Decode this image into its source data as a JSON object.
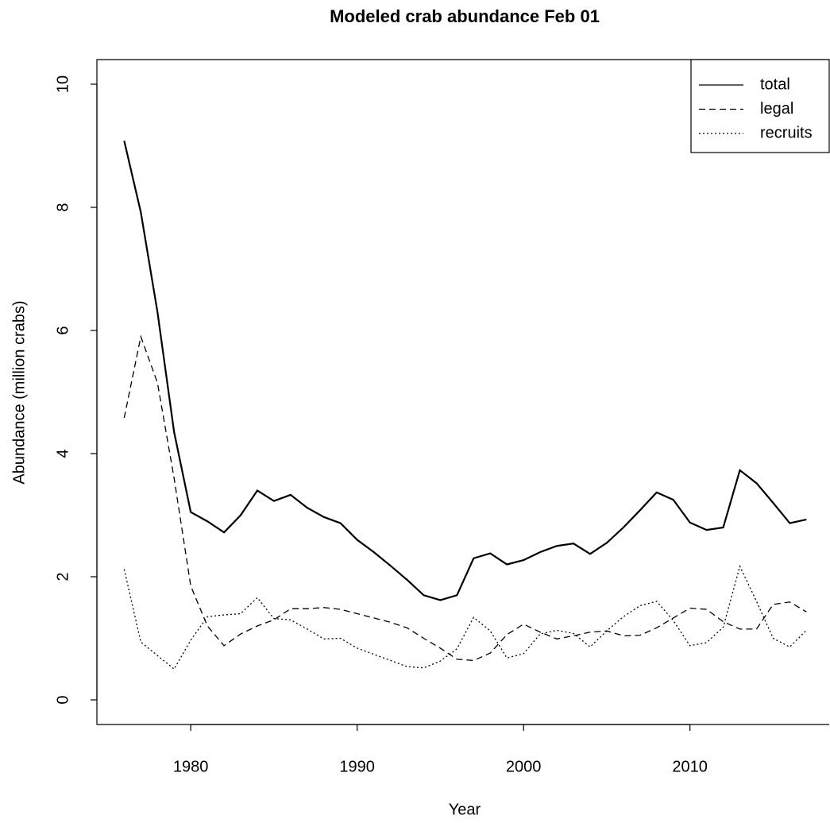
{
  "chart_data": {
    "type": "line",
    "title": "Modeled crab abundance Feb 01",
    "x_label": "Year",
    "y_label": "Abundance (million crabs)",
    "x": [
      1976,
      1977,
      1978,
      1979,
      1980,
      1981,
      1982,
      1983,
      1984,
      1985,
      1986,
      1987,
      1988,
      1989,
      1990,
      1991,
      1992,
      1993,
      1994,
      1995,
      1996,
      1997,
      1998,
      1999,
      2000,
      2001,
      2002,
      2003,
      2004,
      2005,
      2006,
      2007,
      2008,
      2009,
      2010,
      2011,
      2012,
      2013,
      2014,
      2015,
      2016,
      2017
    ],
    "series": [
      {
        "name": "total",
        "color": "#000000",
        "dash": "solid",
        "values": [
          9.08,
          7.92,
          6.3,
          4.35,
          3.05,
          2.9,
          2.72,
          3.0,
          3.4,
          3.23,
          3.33,
          3.12,
          2.97,
          2.87,
          2.6,
          2.4,
          2.18,
          1.95,
          1.7,
          1.62,
          1.7,
          2.3,
          2.38,
          2.2,
          2.27,
          2.4,
          2.5,
          2.54,
          2.37,
          2.55,
          2.8,
          3.08,
          3.37,
          3.25,
          2.88,
          2.76,
          2.8,
          3.73,
          3.52,
          3.2,
          2.87,
          2.93
        ]
      },
      {
        "name": "legal",
        "color": "#000000",
        "dash": "dashed",
        "values": [
          4.58,
          5.9,
          5.15,
          3.6,
          1.85,
          1.2,
          0.88,
          1.07,
          1.2,
          1.3,
          1.48,
          1.48,
          1.5,
          1.47,
          1.4,
          1.33,
          1.26,
          1.17,
          1.0,
          0.84,
          0.66,
          0.64,
          0.76,
          1.06,
          1.23,
          1.1,
          0.99,
          1.04,
          1.1,
          1.12,
          1.04,
          1.05,
          1.17,
          1.33,
          1.49,
          1.47,
          1.27,
          1.15,
          1.15,
          1.55,
          1.59,
          1.43
        ]
      },
      {
        "name": "recruits",
        "color": "#000000",
        "dash": "dotted",
        "values": [
          2.12,
          0.94,
          0.72,
          0.5,
          0.97,
          1.35,
          1.38,
          1.4,
          1.66,
          1.32,
          1.3,
          1.15,
          0.99,
          1.0,
          0.84,
          0.74,
          0.64,
          0.54,
          0.52,
          0.63,
          0.83,
          1.34,
          1.12,
          0.68,
          0.75,
          1.07,
          1.13,
          1.08,
          0.86,
          1.12,
          1.35,
          1.53,
          1.6,
          1.29,
          0.88,
          0.93,
          1.18,
          2.17,
          1.6,
          1.0,
          0.86,
          1.13
        ]
      }
    ],
    "xlim": [
      1974.36,
      2018.64
    ],
    "xticks": [
      1980,
      1990,
      2000,
      2010
    ],
    "ylim": [
      -0.4,
      10.4
    ],
    "yticks": [
      0,
      2,
      4,
      6,
      8,
      10
    ],
    "legend": "top-right",
    "grid": false
  }
}
